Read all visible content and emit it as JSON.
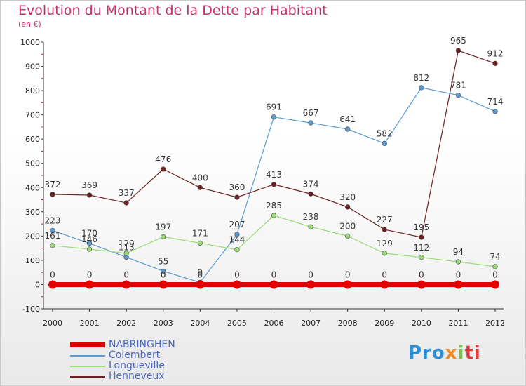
{
  "chart_data": {
    "type": "line",
    "title": "Evolution du Montant de la Dette par Habitant",
    "subtitle": "(en €)",
    "xlabel": "",
    "ylabel": "",
    "categories": [
      "2000",
      "2001",
      "2002",
      "2003",
      "2004",
      "2005",
      "2006",
      "2007",
      "2008",
      "2009",
      "2010",
      "2011",
      "2012"
    ],
    "ylim": [
      -100,
      1000
    ],
    "yticks": [
      -100,
      0,
      100,
      200,
      300,
      400,
      500,
      600,
      700,
      800,
      900,
      1000
    ],
    "grid": false,
    "legend_position": "bottom-left",
    "series": [
      {
        "name": "NABRINGHEN",
        "color": "#e00000",
        "width": 7,
        "values": [
          0,
          0,
          0,
          0,
          0,
          0,
          0,
          0,
          0,
          0,
          0,
          0,
          0
        ],
        "labels": [
          "0",
          "0",
          "0",
          "0",
          "0",
          "0",
          "0",
          "0",
          "0",
          "0",
          "0",
          "0",
          "0"
        ]
      },
      {
        "name": "Colembert",
        "color": "#5b9bd1",
        "width": 1.2,
        "values": [
          223,
          170,
          113,
          55,
          9,
          207,
          691,
          667,
          641,
          582,
          812,
          781,
          714
        ],
        "labels": [
          "223",
          "170",
          "113",
          "55",
          "9",
          "207",
          "691",
          "667",
          "641",
          "582",
          "812",
          "781",
          "714"
        ]
      },
      {
        "name": "Longueville",
        "color": "#99dd77",
        "width": 1.2,
        "values": [
          161,
          146,
          129,
          197,
          171,
          144,
          285,
          238,
          200,
          129,
          112,
          94,
          74
        ],
        "labels": [
          "161",
          "146",
          "129",
          "197",
          "171",
          "144",
          "285",
          "238",
          "200",
          "129",
          "112",
          "94",
          "74"
        ]
      },
      {
        "name": "Henneveux",
        "color": "#6e2020",
        "width": 1.2,
        "values": [
          372,
          369,
          337,
          476,
          400,
          360,
          413,
          374,
          320,
          227,
          195,
          965,
          912
        ],
        "labels": [
          "372",
          "369",
          "337",
          "476",
          "400",
          "360",
          "413",
          "374",
          "320",
          "227",
          "195",
          "965",
          "912"
        ]
      }
    ]
  },
  "logo": {
    "p1": "Pro",
    "p2": "x",
    "p3": "i",
    "p4": "ti"
  }
}
